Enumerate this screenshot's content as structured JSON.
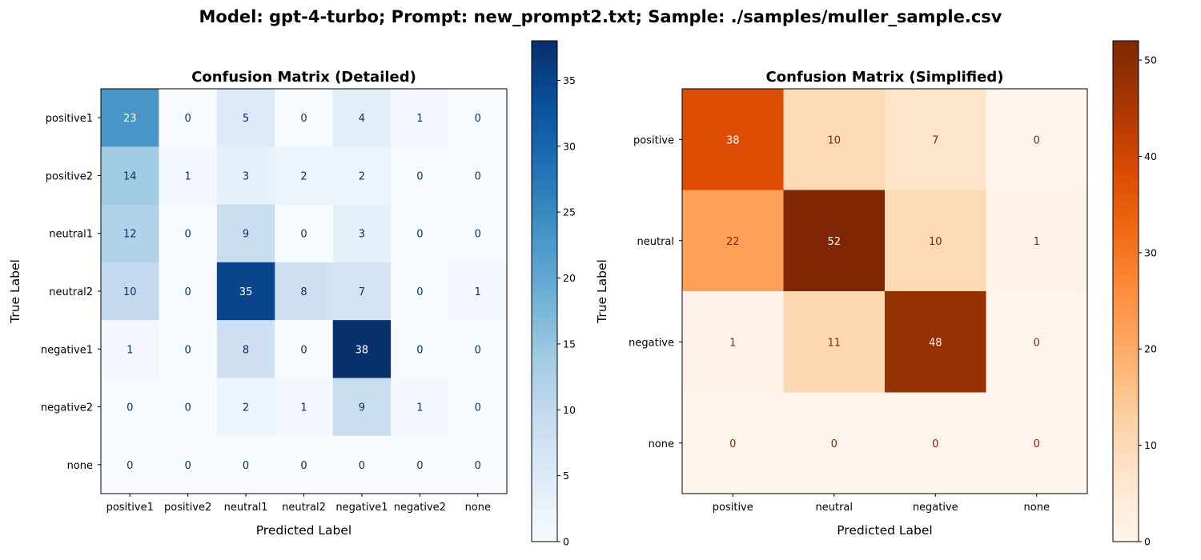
{
  "suptitle": "Model: gpt-4-turbo; Prompt: new_prompt2.txt; Sample: ./samples/muller_sample.csv",
  "chart_data": [
    {
      "type": "heatmap",
      "title": "Confusion Matrix (Detailed)",
      "xlabel": "Predicted Label",
      "ylabel": "True Label",
      "x_categories": [
        "positive1",
        "positive2",
        "neutral1",
        "neutral2",
        "negative1",
        "negative2",
        "none"
      ],
      "y_categories": [
        "positive1",
        "positive2",
        "neutral1",
        "neutral2",
        "negative1",
        "negative2",
        "none"
      ],
      "values": [
        [
          23,
          0,
          5,
          0,
          4,
          1,
          0
        ],
        [
          14,
          1,
          3,
          2,
          2,
          0,
          0
        ],
        [
          12,
          0,
          9,
          0,
          3,
          0,
          0
        ],
        [
          10,
          0,
          35,
          8,
          7,
          0,
          1
        ],
        [
          1,
          0,
          8,
          0,
          38,
          0,
          0
        ],
        [
          0,
          0,
          2,
          1,
          9,
          1,
          0
        ],
        [
          0,
          0,
          0,
          0,
          0,
          0,
          0
        ]
      ],
      "colormap": "Blues",
      "colorbar": {
        "min": 0,
        "max": 38,
        "ticks": [
          0,
          5,
          10,
          15,
          20,
          25,
          30,
          35
        ]
      }
    },
    {
      "type": "heatmap",
      "title": "Confusion Matrix (Simplified)",
      "xlabel": "Predicted Label",
      "ylabel": "True Label",
      "x_categories": [
        "positive",
        "neutral",
        "negative",
        "none"
      ],
      "y_categories": [
        "positive",
        "neutral",
        "negative",
        "none"
      ],
      "values": [
        [
          38,
          10,
          7,
          0
        ],
        [
          22,
          52,
          10,
          1
        ],
        [
          1,
          11,
          48,
          0
        ],
        [
          0,
          0,
          0,
          0
        ]
      ],
      "colormap": "Oranges",
      "colorbar": {
        "min": 0,
        "max": 52,
        "ticks": [
          0,
          10,
          20,
          30,
          40,
          50
        ]
      }
    }
  ]
}
